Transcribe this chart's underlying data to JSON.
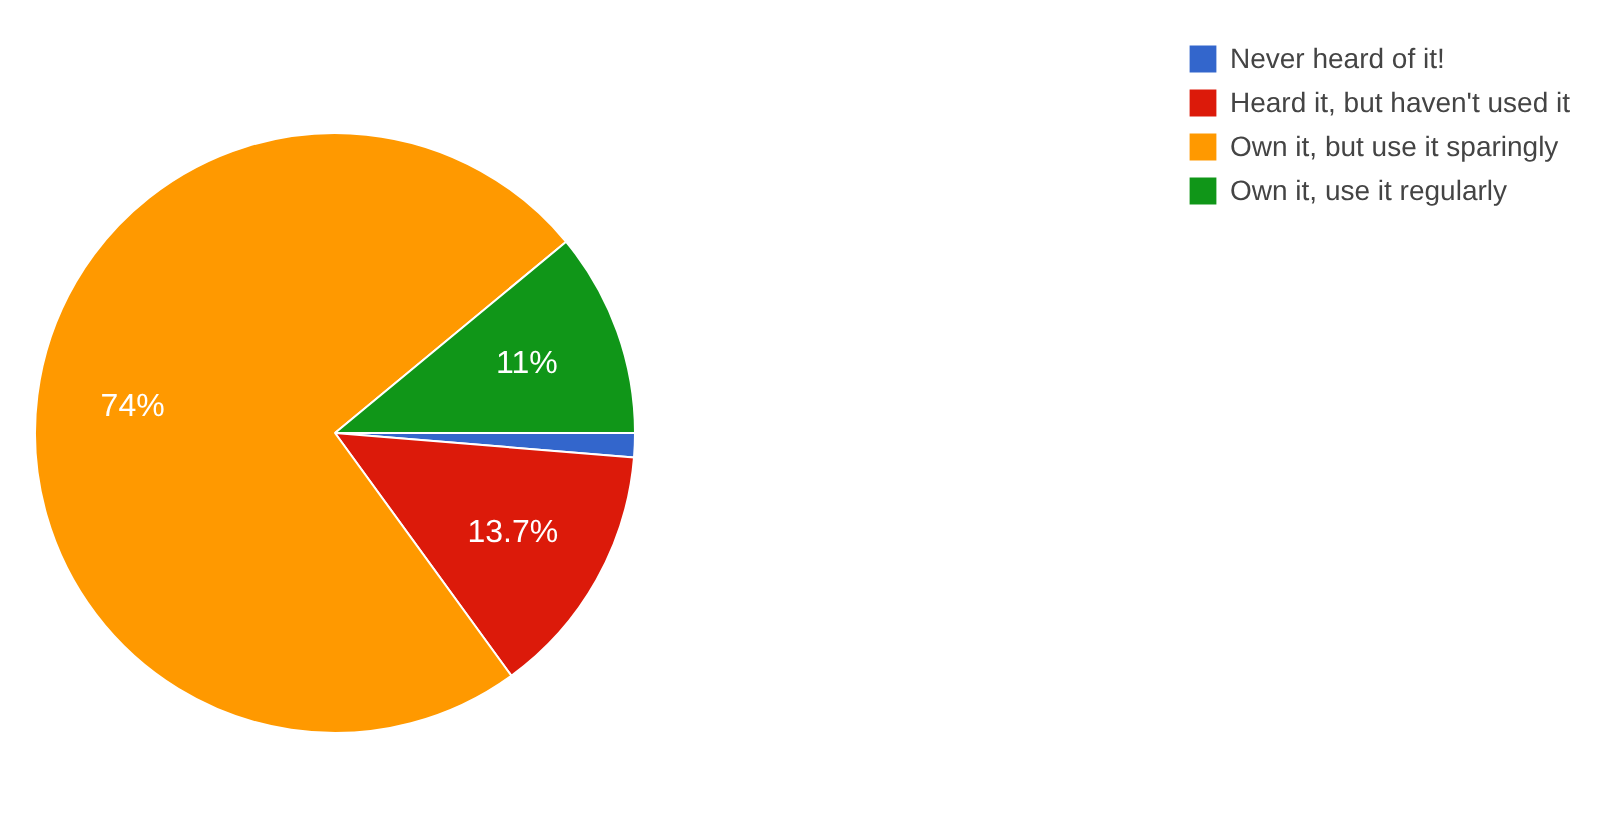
{
  "chart_data": {
    "type": "pie",
    "categories": [
      "Never heard of it!",
      "Heard it, but haven't used it",
      "Own it, but use it sparingly",
      "Own it, use it regularly"
    ],
    "values": [
      1.3,
      13.7,
      74,
      11
    ],
    "colors": [
      "#3366cc",
      "#dc1a0a",
      "#ff9900",
      "#109618"
    ],
    "value_labels": [
      null,
      "13.7%",
      "74%",
      "11%"
    ],
    "legend": "top right"
  }
}
